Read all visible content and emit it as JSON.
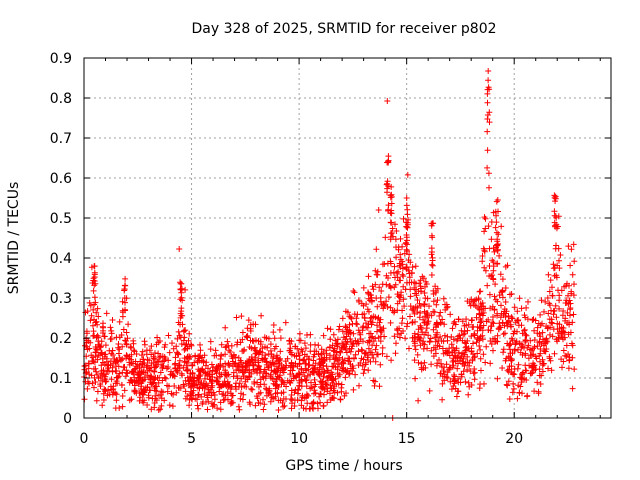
{
  "chart_data": {
    "type": "scatter",
    "title": "Day 328 of 2025, SRMTID for receiver p802",
    "xlabel": "GPS time / hours",
    "ylabel": "SRMTID / TECUs",
    "xlim": [
      0,
      24.5
    ],
    "ylim": [
      0,
      0.9
    ],
    "x_ticks": [
      0,
      5,
      10,
      15,
      20
    ],
    "x_tick_labels": [
      "0",
      "5",
      "10",
      "15",
      "20"
    ],
    "y_ticks": [
      0,
      0.1,
      0.2,
      0.3,
      0.4,
      0.5,
      0.6,
      0.7,
      0.8,
      0.9
    ],
    "y_tick_labels": [
      "0",
      "0.1",
      "0.2",
      "0.3",
      "0.4",
      "0.5",
      "0.6",
      "0.7",
      "0.8",
      "0.9"
    ],
    "grid": true,
    "marker": "+",
    "marker_color": "#ff0000",
    "x_range_of_data": [
      0,
      22.8
    ],
    "baseline_profile": [
      [
        0.0,
        0.14
      ],
      [
        0.5,
        0.15
      ],
      [
        1.0,
        0.13
      ],
      [
        1.5,
        0.11
      ],
      [
        2.0,
        0.14
      ],
      [
        2.5,
        0.1
      ],
      [
        3.0,
        0.1
      ],
      [
        3.5,
        0.11
      ],
      [
        4.0,
        0.1
      ],
      [
        4.5,
        0.13
      ],
      [
        5.0,
        0.11
      ],
      [
        5.5,
        0.1
      ],
      [
        6.0,
        0.09
      ],
      [
        6.5,
        0.1
      ],
      [
        7.0,
        0.12
      ],
      [
        7.5,
        0.13
      ],
      [
        8.0,
        0.14
      ],
      [
        8.5,
        0.13
      ],
      [
        9.0,
        0.12
      ],
      [
        9.5,
        0.11
      ],
      [
        10.0,
        0.11
      ],
      [
        10.5,
        0.1
      ],
      [
        11.0,
        0.11
      ],
      [
        11.5,
        0.12
      ],
      [
        12.0,
        0.15
      ],
      [
        12.5,
        0.18
      ],
      [
        13.0,
        0.2
      ],
      [
        13.5,
        0.24
      ],
      [
        14.0,
        0.26
      ],
      [
        14.5,
        0.3
      ],
      [
        15.0,
        0.33
      ],
      [
        15.5,
        0.24
      ],
      [
        16.0,
        0.2
      ],
      [
        16.5,
        0.2
      ],
      [
        17.0,
        0.15
      ],
      [
        17.5,
        0.16
      ],
      [
        18.0,
        0.2
      ],
      [
        18.5,
        0.24
      ],
      [
        19.0,
        0.26
      ],
      [
        19.5,
        0.22
      ],
      [
        20.0,
        0.18
      ],
      [
        20.5,
        0.16
      ],
      [
        21.0,
        0.17
      ],
      [
        21.5,
        0.19
      ],
      [
        22.0,
        0.22
      ],
      [
        22.5,
        0.25
      ],
      [
        22.8,
        0.26
      ]
    ],
    "peaks": [
      {
        "x": 0.45,
        "y": 0.38
      },
      {
        "x": 1.85,
        "y": 0.35
      },
      {
        "x": 4.5,
        "y": 0.34
      },
      {
        "x": 14.1,
        "y": 0.66
      },
      {
        "x": 14.3,
        "y": 0.58
      },
      {
        "x": 15.0,
        "y": 0.49
      },
      {
        "x": 16.2,
        "y": 0.5
      },
      {
        "x": 18.8,
        "y": 0.83
      },
      {
        "x": 19.2,
        "y": 0.55
      },
      {
        "x": 21.9,
        "y": 0.56
      }
    ],
    "outliers": [
      {
        "x": 14.35,
        "y": 0.0
      },
      {
        "x": 13.7,
        "y": 0.52
      },
      {
        "x": 15.0,
        "y": 0.55
      }
    ]
  }
}
